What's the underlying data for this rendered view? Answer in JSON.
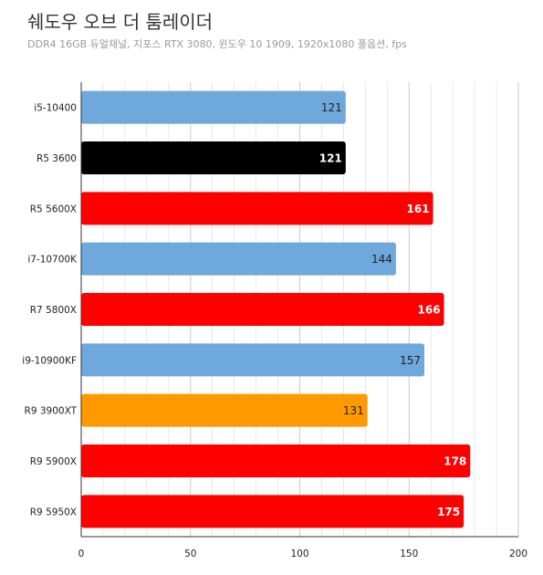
{
  "title": "쉐도우 오브 더 툼레이더",
  "subtitle": "DDR4 16GB 듀얼채널, 지포스 RTX 3080, 윈도우 10 1909, 1920x1080 풀옵션, fps",
  "colors": {
    "intel": "#6fa8dc",
    "amd_zen2": "#000000",
    "amd_zen3": "#ff0000",
    "amd_zen2_xt": "#ff9900",
    "grid": "#d9d9d9",
    "axis": "#333333"
  },
  "chart_data": {
    "type": "bar",
    "orientation": "horizontal",
    "title": "쉐도우 오브 더 툼레이더",
    "subtitle": "DDR4 16GB 듀얼채널, 지포스 RTX 3080, 윈도우 10 1909, 1920x1080 풀옵션, fps",
    "xlabel": "",
    "ylabel": "",
    "xlim": [
      0,
      200
    ],
    "ticks": [
      0,
      50,
      100,
      150,
      200
    ],
    "minor_grid_step": 10,
    "grid": true,
    "legend": "none",
    "categories": [
      "i5-10400",
      "R5 3600",
      "R5 5600X",
      "i7-10700K",
      "R7 5800X",
      "i9-10900KF",
      "R9 3900XT",
      "R9 5900X",
      "R9 5950X"
    ],
    "values": [
      121,
      121,
      161,
      144,
      166,
      157,
      131,
      178,
      175
    ],
    "bar_colors": [
      "#6fa8dc",
      "#000000",
      "#ff0000",
      "#6fa8dc",
      "#ff0000",
      "#6fa8dc",
      "#ff9900",
      "#ff0000",
      "#ff0000"
    ],
    "label_colors": [
      "#222222",
      "#ffffff",
      "#ffffff",
      "#222222",
      "#ffffff",
      "#222222",
      "#222222",
      "#ffffff",
      "#ffffff"
    ],
    "label_bold": [
      false,
      true,
      true,
      false,
      true,
      false,
      false,
      true,
      true
    ]
  }
}
